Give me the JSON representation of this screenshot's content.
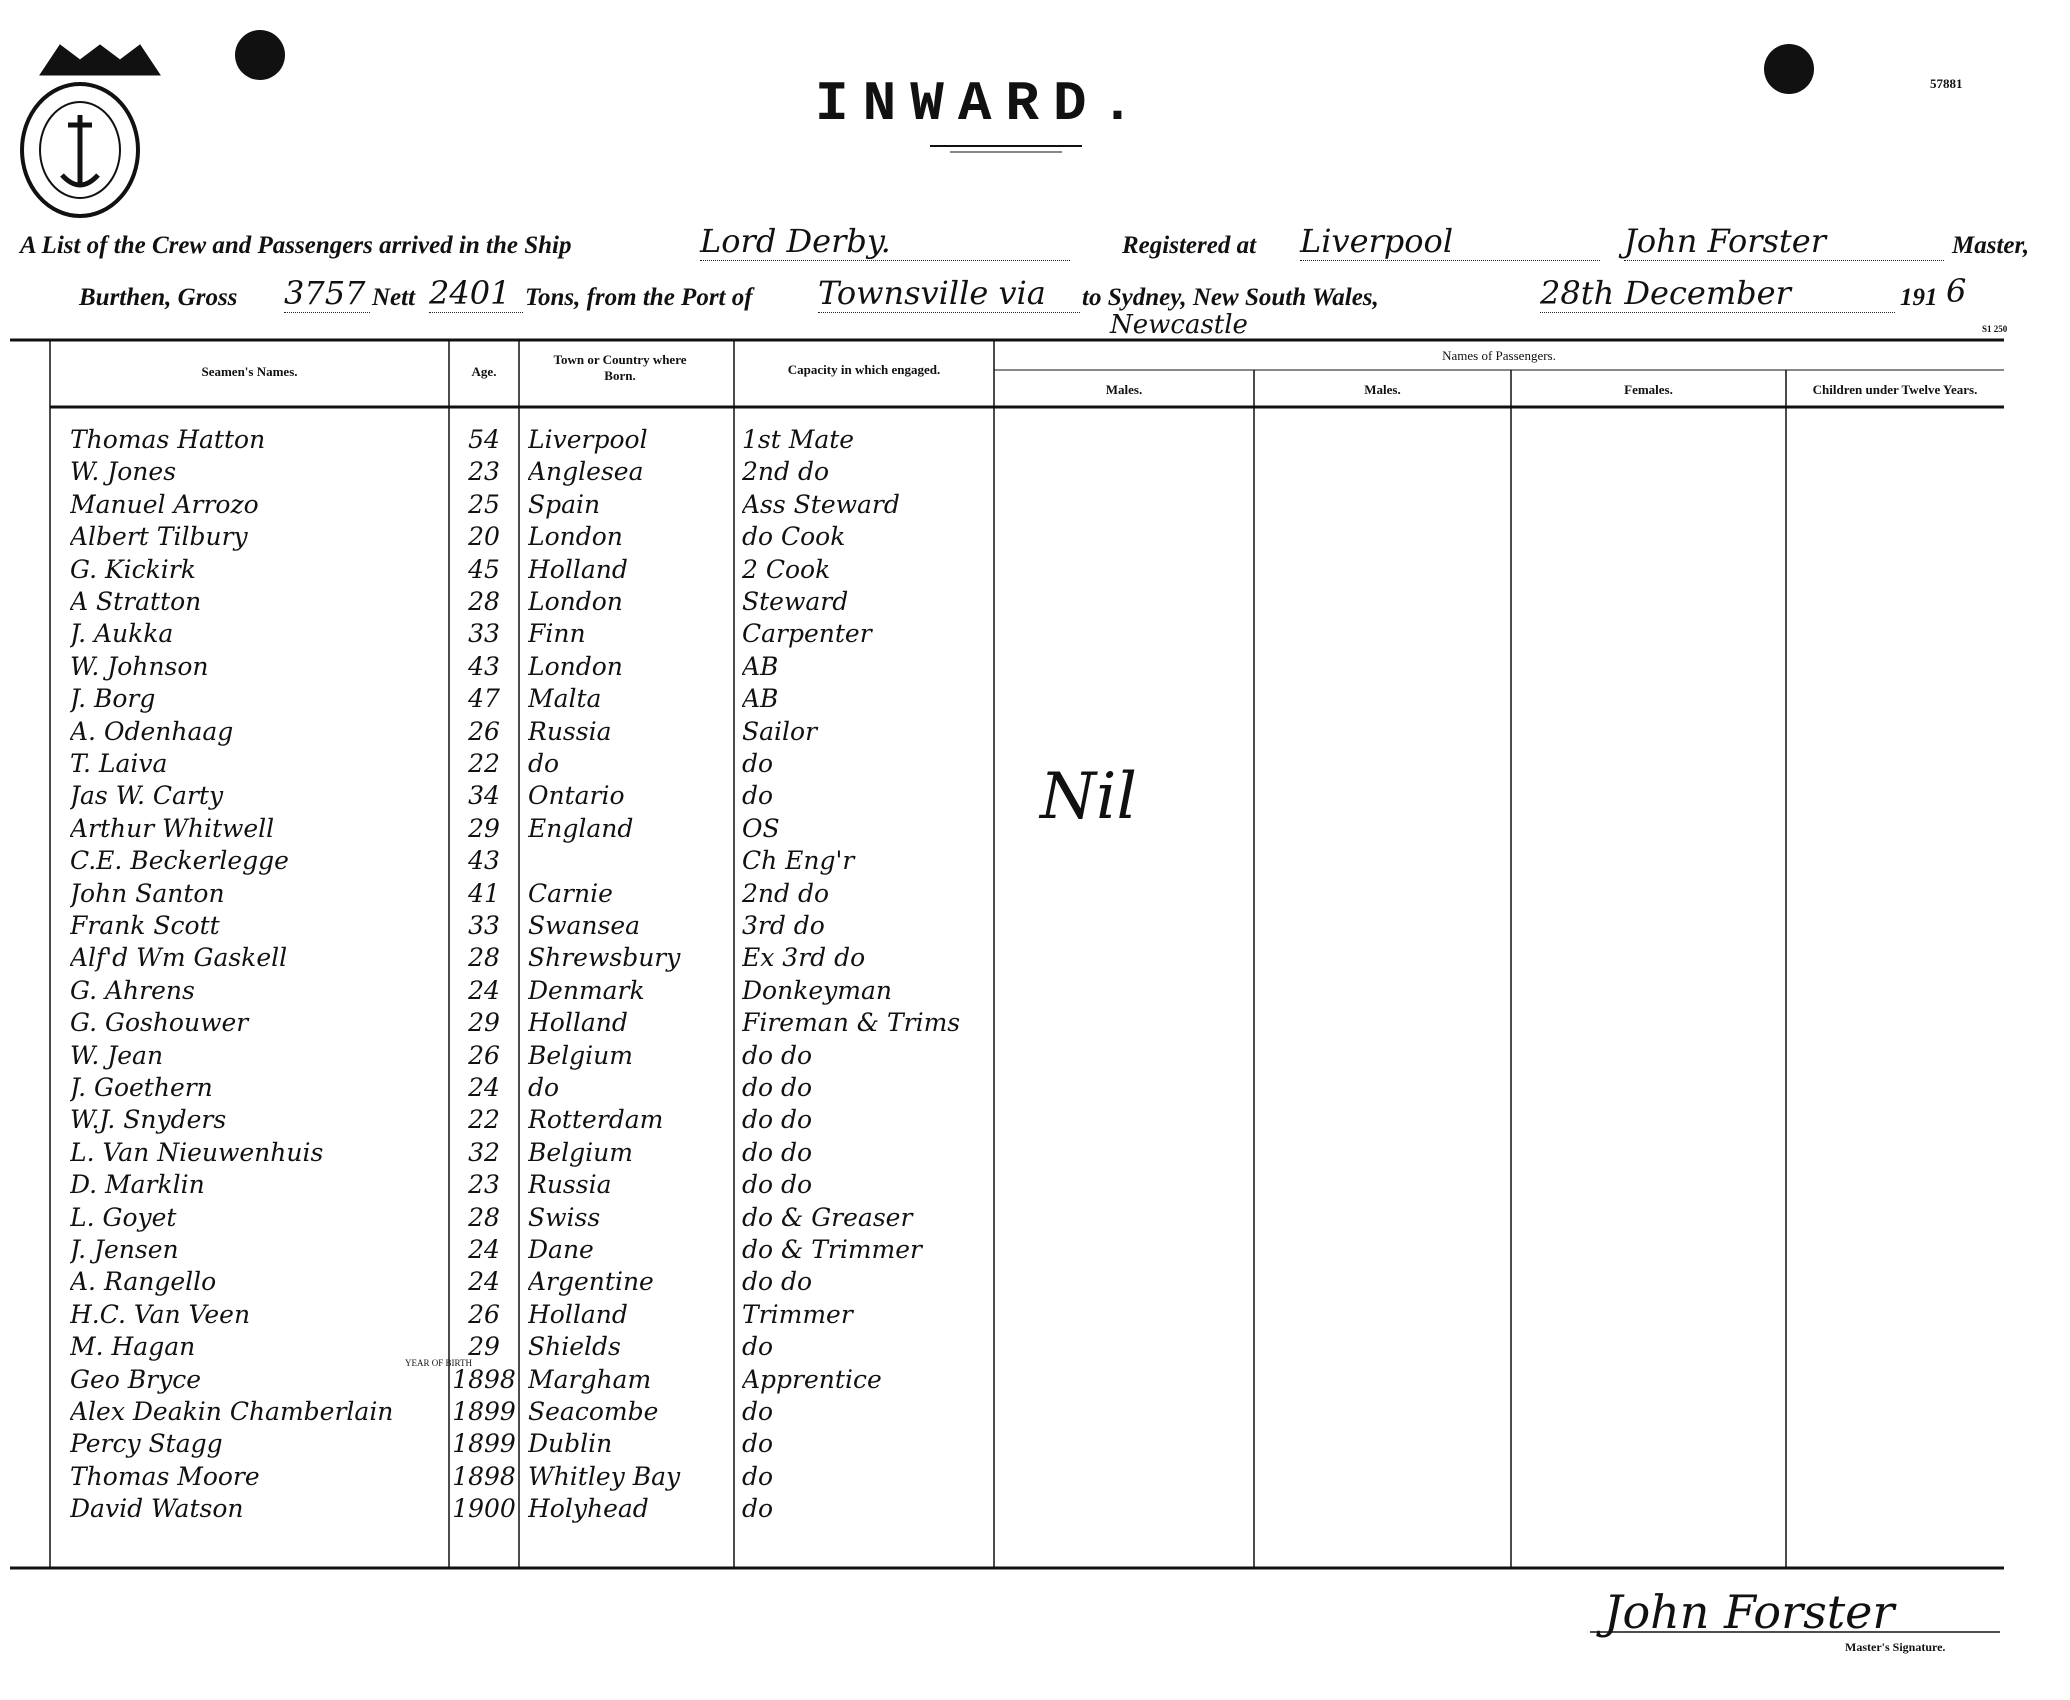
{
  "header": {
    "doc_number": "57881",
    "title": "INWARD.",
    "form_number": "S1 250"
  },
  "line1": {
    "lead": "A List of the Crew and Passengers arrived in the Ship",
    "ship": "Lord Derby.",
    "registered": "Registered at",
    "port": "Liverpool",
    "master": "John Forster",
    "master_label": "Master,"
  },
  "line2": {
    "burthen": "Burthen, Gross",
    "gross": 3757,
    "nett_label": "Nett",
    "nett": 2401,
    "tons": "Tons, from the Port of",
    "from_port": "Townsville via",
    "via_port": "Newcastle",
    "to": "to Sydney, New South Wales,",
    "date": "28th December",
    "year_prefix": "191",
    "year_digit": "6"
  },
  "table": {
    "headers": {
      "name": "Seamen's Names.",
      "age": "Age.",
      "born": "Town or Country where Born.",
      "capacity": "Capacity in which engaged.",
      "passengers": "Names of Passengers.",
      "males1": "Males.",
      "males2": "Males.",
      "females": "Females.",
      "children": "Children under Twelve Years."
    },
    "year_of_birth_note": "YEAR OF BIRTH",
    "passengers_note": "Nil",
    "rows": [
      [
        "Thomas Hatton",
        54,
        "Liverpool",
        "1st Mate"
      ],
      [
        "W. Jones",
        23,
        "Anglesea",
        "2nd do"
      ],
      [
        "Manuel Arrozo",
        25,
        "Spain",
        "Ass Steward"
      ],
      [
        "Albert Tilbury",
        20,
        "London",
        "do Cook"
      ],
      [
        "G. Kickirk",
        45,
        "Holland",
        "2 Cook"
      ],
      [
        "A Stratton",
        28,
        "London",
        "Steward"
      ],
      [
        "J. Aukka",
        33,
        "Finn",
        "Carpenter"
      ],
      [
        "W. Johnson",
        43,
        "London",
        "AB"
      ],
      [
        "J. Borg",
        47,
        "Malta",
        "AB"
      ],
      [
        "A. Odenhaag",
        26,
        "Russia",
        "Sailor"
      ],
      [
        "T. Laiva",
        22,
        "do",
        "do"
      ],
      [
        "Jas W. Carty",
        34,
        "Ontario",
        "do"
      ],
      [
        "Arthur Whitwell",
        29,
        "England",
        "OS"
      ],
      [
        "C.E. Beckerlegge",
        43,
        "",
        "Ch Eng'r"
      ],
      [
        "John Santon",
        41,
        "Carnie",
        "2nd do"
      ],
      [
        "Frank Scott",
        33,
        "Swansea",
        "3rd do"
      ],
      [
        "Alf'd Wm Gaskell",
        28,
        "Shrewsbury",
        "Ex 3rd do"
      ],
      [
        "G. Ahrens",
        24,
        "Denmark",
        "Donkeyman"
      ],
      [
        "G. Goshouwer",
        29,
        "Holland",
        "Fireman & Trims"
      ],
      [
        "W. Jean",
        26,
        "Belgium",
        "do do"
      ],
      [
        "J. Goethern",
        24,
        "do",
        "do do"
      ],
      [
        "W.J. Snyders",
        22,
        "Rotterdam",
        "do do"
      ],
      [
        "L. Van Nieuwenhuis",
        32,
        "Belgium",
        "do do"
      ],
      [
        "D. Marklin",
        23,
        "Russia",
        "do do"
      ],
      [
        "L. Goyet",
        28,
        "Swiss",
        "do & Greaser"
      ],
      [
        "J. Jensen",
        24,
        "Dane",
        "do & Trimmer"
      ],
      [
        "A. Rangello",
        24,
        "Argentine",
        "do do"
      ],
      [
        "H.C. Van Veen",
        26,
        "Holland",
        "Trimmer"
      ],
      [
        "M. Hagan",
        29,
        "Shields",
        "do"
      ],
      [
        "Geo Bryce",
        1898,
        "Margham",
        "Apprentice"
      ],
      [
        "Alex Deakin Chamberlain",
        1899,
        "Seacombe",
        "do"
      ],
      [
        "Percy Stagg",
        1899,
        "Dublin",
        "do"
      ],
      [
        "Thomas Moore",
        1898,
        "Whitley Bay",
        "do"
      ],
      [
        "David Watson",
        1900,
        "Holyhead",
        "do"
      ]
    ]
  },
  "signature": {
    "name": "John Forster",
    "label": "Master's Signature."
  }
}
